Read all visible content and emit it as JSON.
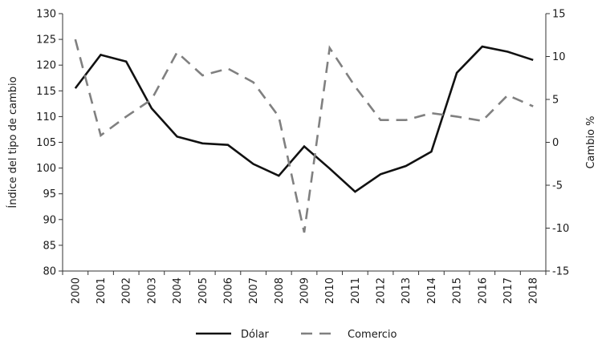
{
  "chart_data": {
    "type": "line",
    "categories": [
      "2000",
      "2001",
      "2002",
      "2003",
      "2004",
      "2005",
      "2006",
      "2007",
      "2008",
      "2009",
      "2010",
      "2011",
      "2012",
      "2013",
      "2014",
      "2015",
      "2016",
      "2017",
      "2018"
    ],
    "series": [
      {
        "name": "Dólar",
        "axis": "left",
        "style": "solid",
        "color": "#111111",
        "values": [
          115.5,
          122.0,
          120.7,
          111.6,
          106.1,
          104.8,
          104.5,
          100.8,
          98.5,
          104.2,
          99.9,
          95.4,
          98.8,
          100.4,
          103.2,
          118.5,
          123.6,
          122.6,
          121.0
        ]
      },
      {
        "name": "Comercio",
        "axis": "right",
        "style": "dashed",
        "color": "#808080",
        "values": [
          12.0,
          0.8,
          3.0,
          5.0,
          10.5,
          7.8,
          8.6,
          7.0,
          3.0,
          -10.5,
          11.0,
          6.5,
          2.6,
          2.6,
          3.4,
          3.0,
          2.5,
          5.5,
          4.2
        ]
      }
    ],
    "ylabel_left": "Índice del tipo de cambio",
    "ylabel_right": "Cambio %",
    "ylim_left": [
      80,
      130
    ],
    "yticks_left": [
      80,
      85,
      90,
      95,
      100,
      105,
      110,
      115,
      120,
      125,
      130
    ],
    "ylim_right": [
      -15,
      15
    ],
    "yticks_right": [
      -15,
      -10,
      -5,
      0,
      5,
      10,
      15
    ],
    "grid": false,
    "legend_position": "bottom-center"
  }
}
